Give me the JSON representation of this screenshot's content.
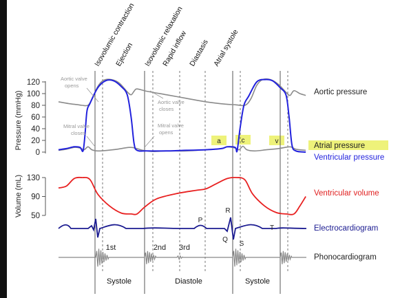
{
  "phases": [
    "Isovolumic contraction",
    "Ejection",
    "Isovolumic relaxation",
    "Rapid inflow",
    "Diastasis",
    "Atrial systole"
  ],
  "pressure_axis": {
    "label": "Pressure (mmHg)",
    "ticks": [
      "120",
      "100",
      "80",
      "60",
      "40",
      "20",
      "0"
    ]
  },
  "volume_axis": {
    "label": "Volume (mL)",
    "ticks": [
      "130",
      "90",
      "50"
    ]
  },
  "annotations": {
    "aortic_opens": [
      "Aortic valve",
      "opens"
    ],
    "aortic_closes": [
      "Aortic valve",
      "closes"
    ],
    "mitral_opens": [
      "Mitral valve",
      "opens"
    ],
    "mitral_closes": [
      "Mitral valve",
      "closes"
    ]
  },
  "wave_labels": {
    "a": "a",
    "c": "c",
    "v": "v",
    "P": "P",
    "Q": "Q",
    "R": "R",
    "S": "S",
    "T": "T"
  },
  "heart_sounds": [
    "1st",
    "2nd",
    "3rd"
  ],
  "series": {
    "aortic": "Aortic pressure",
    "atrial": "Atrial pressure",
    "ventricular": "Ventricular pressure",
    "volume": "Ventricular volume",
    "ecg": "Electrocardiogram",
    "phono": "Phonocardiogram"
  },
  "bottom_labels": [
    "Systole",
    "Diastole",
    "Systole"
  ],
  "colors": {
    "aortic": "#8a8a8a",
    "atrial": "#8a8a8a",
    "ventricular": "#2222dd",
    "volume": "#e82020",
    "ecg": "#1a1a90",
    "phono": "#888888",
    "highlight": "#eef27a",
    "ventricular_label": "#2222dd",
    "volume_label": "#e02020",
    "ecg_label": "#1a1a90"
  },
  "chart_data": {
    "type": "line",
    "x_unit": "s",
    "series": [
      {
        "name": "Aortic pressure",
        "unit": "mmHg",
        "points": [
          [
            0.0,
            86
          ],
          [
            0.05,
            83
          ],
          [
            0.1,
            81
          ],
          [
            0.12,
            80
          ],
          [
            0.15,
            80
          ],
          [
            0.17,
            90
          ],
          [
            0.2,
            112
          ],
          [
            0.23,
            123
          ],
          [
            0.27,
            124
          ],
          [
            0.31,
            118
          ],
          [
            0.35,
            103
          ],
          [
            0.37,
            98
          ],
          [
            0.385,
            104
          ],
          [
            0.4,
            108
          ],
          [
            0.45,
            104
          ],
          [
            0.55,
            98
          ],
          [
            0.65,
            92
          ],
          [
            0.75,
            86
          ],
          [
            0.85,
            82
          ],
          [
            0.9,
            81
          ],
          [
            0.95,
            80
          ],
          [
            0.98,
            91
          ],
          [
            1.01,
            114
          ],
          [
            1.04,
            124
          ],
          [
            1.08,
            124
          ],
          [
            1.12,
            116
          ],
          [
            1.16,
            102
          ],
          [
            1.18,
            97
          ],
          [
            1.2,
            105
          ],
          [
            1.23,
            100
          ],
          [
            1.26,
            97
          ]
        ]
      },
      {
        "name": "Atrial pressure",
        "unit": "mmHg",
        "points": [
          [
            0.0,
            3
          ],
          [
            0.04,
            5
          ],
          [
            0.08,
            8
          ],
          [
            0.11,
            7
          ],
          [
            0.13,
            4
          ],
          [
            0.15,
            9
          ],
          [
            0.17,
            4
          ],
          [
            0.2,
            2
          ],
          [
            0.25,
            3
          ],
          [
            0.3,
            5
          ],
          [
            0.36,
            8
          ],
          [
            0.39,
            7
          ],
          [
            0.43,
            3
          ],
          [
            0.48,
            1
          ],
          [
            0.55,
            2
          ],
          [
            0.65,
            2
          ],
          [
            0.75,
            4
          ],
          [
            0.83,
            6
          ],
          [
            0.86,
            9
          ],
          [
            0.9,
            7
          ],
          [
            0.92,
            4
          ],
          [
            0.94,
            10
          ],
          [
            0.96,
            4
          ],
          [
            1.0,
            2
          ],
          [
            1.06,
            4
          ],
          [
            1.12,
            6
          ],
          [
            1.18,
            9
          ],
          [
            1.21,
            5
          ],
          [
            1.26,
            3
          ]
        ]
      },
      {
        "name": "Ventricular pressure",
        "unit": "mmHg",
        "points": [
          [
            0.0,
            4
          ],
          [
            0.04,
            6
          ],
          [
            0.08,
            9
          ],
          [
            0.11,
            8
          ],
          [
            0.125,
            2
          ],
          [
            0.135,
            30
          ],
          [
            0.145,
            70
          ],
          [
            0.16,
            83
          ],
          [
            0.2,
            110
          ],
          [
            0.24,
            122
          ],
          [
            0.28,
            122
          ],
          [
            0.32,
            112
          ],
          [
            0.35,
            98
          ],
          [
            0.37,
            60
          ],
          [
            0.385,
            15
          ],
          [
            0.4,
            3
          ],
          [
            0.45,
            2
          ],
          [
            0.55,
            2
          ],
          [
            0.65,
            3
          ],
          [
            0.75,
            4
          ],
          [
            0.83,
            6
          ],
          [
            0.86,
            9
          ],
          [
            0.9,
            8
          ],
          [
            0.91,
            2
          ],
          [
            0.925,
            40
          ],
          [
            0.945,
            80
          ],
          [
            0.97,
            96
          ],
          [
            1.01,
            120
          ],
          [
            1.05,
            124
          ],
          [
            1.09,
            122
          ],
          [
            1.13,
            110
          ],
          [
            1.16,
            97
          ],
          [
            1.175,
            60
          ],
          [
            1.19,
            12
          ],
          [
            1.21,
            2
          ],
          [
            1.26,
            0
          ]
        ]
      },
      {
        "name": "Ventricular volume",
        "unit": "mL",
        "points": [
          [
            0.0,
            108
          ],
          [
            0.04,
            112
          ],
          [
            0.08,
            128
          ],
          [
            0.12,
            130
          ],
          [
            0.16,
            126
          ],
          [
            0.2,
            95
          ],
          [
            0.26,
            70
          ],
          [
            0.32,
            55
          ],
          [
            0.37,
            53
          ],
          [
            0.4,
            53
          ],
          [
            0.44,
            68
          ],
          [
            0.5,
            85
          ],
          [
            0.6,
            96
          ],
          [
            0.7,
            103
          ],
          [
            0.75,
            106
          ],
          [
            0.8,
            116
          ],
          [
            0.86,
            128
          ],
          [
            0.91,
            130
          ],
          [
            0.95,
            125
          ],
          [
            0.99,
            95
          ],
          [
            1.05,
            70
          ],
          [
            1.11,
            56
          ],
          [
            1.16,
            53
          ],
          [
            1.2,
            53
          ],
          [
            1.23,
            70
          ],
          [
            1.26,
            90
          ]
        ]
      }
    ]
  }
}
